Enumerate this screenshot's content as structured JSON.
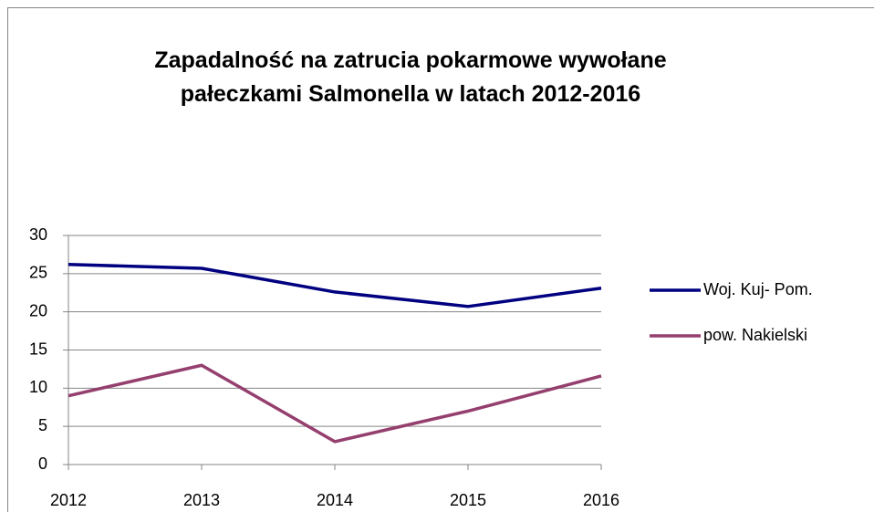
{
  "chart_data": {
    "type": "line",
    "title": "Zapadalność na zatrucia pokarmowe wywołane pałeczkami Salmonella w latach 2012-2016",
    "categories": [
      "2012",
      "2013",
      "2014",
      "2015",
      "2016"
    ],
    "series": [
      {
        "name": "Woj. Kuj- Pom.",
        "color": "#000080",
        "values": [
          26.2,
          25.7,
          22.6,
          20.7,
          23.1
        ]
      },
      {
        "name": "pow. Nakielski",
        "color": "#953f6f",
        "values": [
          9.0,
          13.0,
          3.0,
          7.0,
          11.6
        ]
      }
    ],
    "ylim": [
      0,
      30
    ],
    "yticks": [
      0,
      5,
      10,
      15,
      20,
      25,
      30
    ],
    "grid": true,
    "legend": "right"
  }
}
